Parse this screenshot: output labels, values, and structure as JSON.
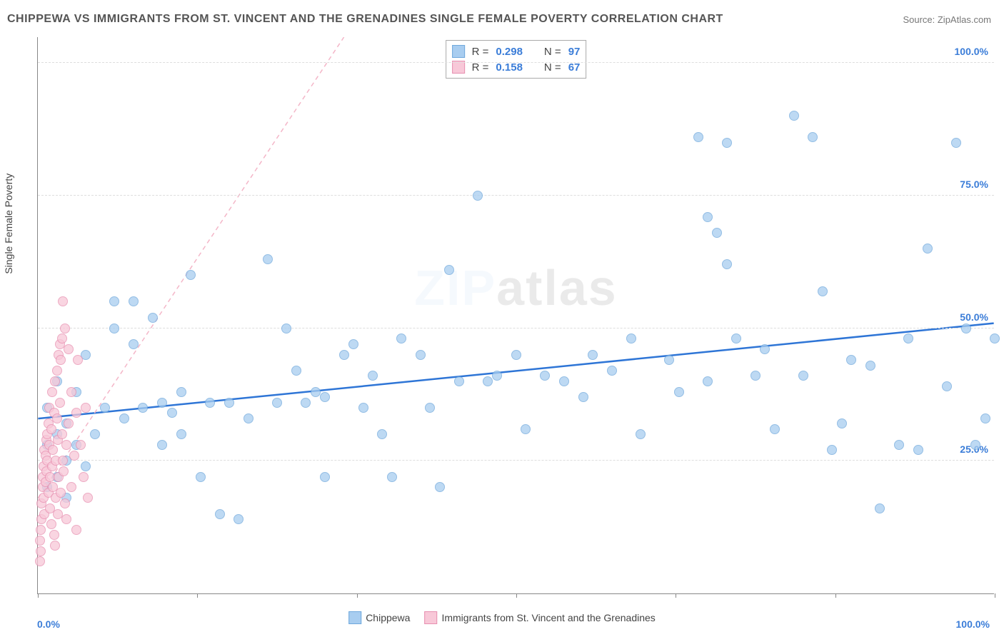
{
  "title": "CHIPPEWA VS IMMIGRANTS FROM ST. VINCENT AND THE GRENADINES SINGLE FEMALE POVERTY CORRELATION CHART",
  "source": "Source: ZipAtlas.com",
  "ylabel": "Single Female Poverty",
  "watermark": {
    "part1": "ZIP",
    "part2": "atlas"
  },
  "chart": {
    "type": "scatter",
    "xlim": [
      0,
      100
    ],
    "ylim": [
      0,
      105
    ],
    "grid_y": [
      25,
      50,
      75,
      100
    ],
    "grid_labels": [
      "25.0%",
      "50.0%",
      "75.0%",
      "100.0%"
    ],
    "xtick_positions": [
      0,
      16.67,
      33.33,
      50,
      66.67,
      83.33,
      100
    ],
    "xlabel_min": "0.0%",
    "xlabel_max": "100.0%",
    "grid_color": "#dddddd",
    "background_color": "#ffffff"
  },
  "series": [
    {
      "name": "Chippewa",
      "color_fill": "#a8cdf0",
      "color_stroke": "#6fa8dc",
      "marker_size": 14,
      "r_label": "R =",
      "r_value": "0.298",
      "n_label": "N =",
      "n_value": "97",
      "trend": {
        "x1": 0,
        "y1": 33,
        "x2": 100,
        "y2": 51,
        "color": "#2e75d6",
        "width": 2.5,
        "dash": "none"
      },
      "points": [
        [
          1,
          20
        ],
        [
          1,
          28
        ],
        [
          1,
          35
        ],
        [
          2,
          22
        ],
        [
          2,
          30
        ],
        [
          2,
          40
        ],
        [
          3,
          18
        ],
        [
          3,
          25
        ],
        [
          3,
          32
        ],
        [
          4,
          28
        ],
        [
          4,
          38
        ],
        [
          5,
          24
        ],
        [
          5,
          45
        ],
        [
          6,
          30
        ],
        [
          7,
          35
        ],
        [
          8,
          50
        ],
        [
          8,
          55
        ],
        [
          9,
          33
        ],
        [
          10,
          47
        ],
        [
          10,
          55
        ],
        [
          11,
          35
        ],
        [
          12,
          52
        ],
        [
          13,
          28
        ],
        [
          13,
          36
        ],
        [
          14,
          34
        ],
        [
          15,
          38
        ],
        [
          15,
          30
        ],
        [
          16,
          60
        ],
        [
          17,
          22
        ],
        [
          18,
          36
        ],
        [
          19,
          15
        ],
        [
          20,
          36
        ],
        [
          21,
          14
        ],
        [
          22,
          33
        ],
        [
          24,
          63
        ],
        [
          25,
          36
        ],
        [
          26,
          50
        ],
        [
          27,
          42
        ],
        [
          28,
          36
        ],
        [
          29,
          38
        ],
        [
          30,
          37
        ],
        [
          30,
          22
        ],
        [
          32,
          45
        ],
        [
          33,
          47
        ],
        [
          34,
          35
        ],
        [
          35,
          41
        ],
        [
          36,
          30
        ],
        [
          37,
          22
        ],
        [
          38,
          48
        ],
        [
          40,
          45
        ],
        [
          41,
          35
        ],
        [
          42,
          20
        ],
        [
          43,
          61
        ],
        [
          44,
          40
        ],
        [
          46,
          75
        ],
        [
          47,
          40
        ],
        [
          48,
          41
        ],
        [
          50,
          45
        ],
        [
          51,
          31
        ],
        [
          53,
          41
        ],
        [
          55,
          40
        ],
        [
          57,
          37
        ],
        [
          58,
          45
        ],
        [
          60,
          42
        ],
        [
          62,
          48
        ],
        [
          63,
          30
        ],
        [
          66,
          44
        ],
        [
          67,
          38
        ],
        [
          69,
          86
        ],
        [
          70,
          40
        ],
        [
          70,
          71
        ],
        [
          71,
          68
        ],
        [
          72,
          85
        ],
        [
          72,
          62
        ],
        [
          73,
          48
        ],
        [
          75,
          41
        ],
        [
          76,
          46
        ],
        [
          77,
          31
        ],
        [
          79,
          90
        ],
        [
          80,
          41
        ],
        [
          81,
          86
        ],
        [
          82,
          57
        ],
        [
          83,
          27
        ],
        [
          84,
          32
        ],
        [
          85,
          44
        ],
        [
          87,
          43
        ],
        [
          88,
          16
        ],
        [
          90,
          28
        ],
        [
          91,
          48
        ],
        [
          92,
          27
        ],
        [
          93,
          65
        ],
        [
          95,
          39
        ],
        [
          96,
          85
        ],
        [
          97,
          50
        ],
        [
          98,
          28
        ],
        [
          99,
          33
        ],
        [
          100,
          48
        ]
      ]
    },
    {
      "name": "Immigrants from St. Vincent and the Grenadines",
      "color_fill": "#f8c8d8",
      "color_stroke": "#e78fb0",
      "marker_size": 14,
      "r_label": "R =",
      "r_value": "0.158",
      "n_label": "N =",
      "n_value": "67",
      "trend": {
        "x1": 0,
        "y1": 18,
        "x2": 32,
        "y2": 105,
        "color": "#f4b6c8",
        "width": 1.5,
        "dash": "6,5"
      },
      "points": [
        [
          0.2,
          6
        ],
        [
          0.2,
          10
        ],
        [
          0.3,
          12
        ],
        [
          0.3,
          8
        ],
        [
          0.4,
          14
        ],
        [
          0.4,
          17
        ],
        [
          0.5,
          20
        ],
        [
          0.5,
          22
        ],
        [
          0.6,
          24
        ],
        [
          0.6,
          18
        ],
        [
          0.7,
          27
        ],
        [
          0.7,
          15
        ],
        [
          0.8,
          26
        ],
        [
          0.8,
          21
        ],
        [
          0.9,
          29
        ],
        [
          0.9,
          23
        ],
        [
          1.0,
          30
        ],
        [
          1.0,
          25
        ],
        [
          1.1,
          32
        ],
        [
          1.1,
          19
        ],
        [
          1.2,
          28
        ],
        [
          1.2,
          35
        ],
        [
          1.3,
          22
        ],
        [
          1.3,
          16
        ],
        [
          1.4,
          31
        ],
        [
          1.4,
          13
        ],
        [
          1.5,
          24
        ],
        [
          1.5,
          38
        ],
        [
          1.6,
          20
        ],
        [
          1.6,
          27
        ],
        [
          1.7,
          34
        ],
        [
          1.7,
          11
        ],
        [
          1.8,
          9
        ],
        [
          1.8,
          40
        ],
        [
          1.9,
          18
        ],
        [
          1.9,
          25
        ],
        [
          2.0,
          33
        ],
        [
          2.0,
          42
        ],
        [
          2.1,
          15
        ],
        [
          2.1,
          29
        ],
        [
          2.2,
          45
        ],
        [
          2.2,
          22
        ],
        [
          2.3,
          47
        ],
        [
          2.3,
          36
        ],
        [
          2.4,
          19
        ],
        [
          2.4,
          44
        ],
        [
          2.5,
          48
        ],
        [
          2.5,
          30
        ],
        [
          2.6,
          55
        ],
        [
          2.6,
          25
        ],
        [
          2.7,
          23
        ],
        [
          2.8,
          17
        ],
        [
          2.8,
          50
        ],
        [
          3.0,
          28
        ],
        [
          3.0,
          14
        ],
        [
          3.2,
          32
        ],
        [
          3.2,
          46
        ],
        [
          3.5,
          20
        ],
        [
          3.5,
          38
        ],
        [
          3.8,
          26
        ],
        [
          4.0,
          34
        ],
        [
          4.0,
          12
        ],
        [
          4.2,
          44
        ],
        [
          4.5,
          28
        ],
        [
          4.8,
          22
        ],
        [
          5.0,
          35
        ],
        [
          5.2,
          18
        ]
      ]
    }
  ]
}
